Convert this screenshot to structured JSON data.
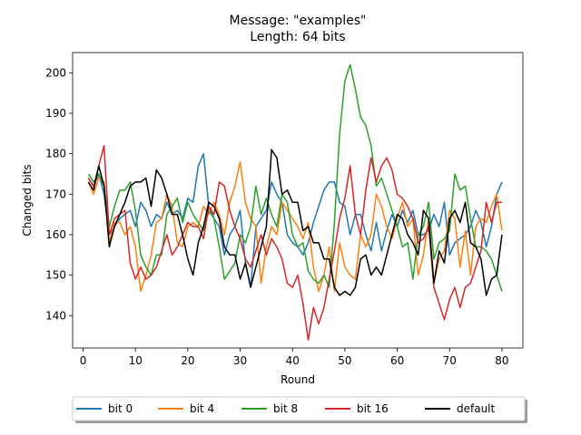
{
  "chart_data": {
    "type": "line",
    "title": [
      "Message: \"examples\"",
      "Length: 64 bits"
    ],
    "xlabel": "Round",
    "ylabel": "Changed bits",
    "xlim": [
      -2,
      84
    ],
    "ylim": [
      132,
      205
    ],
    "xticks": [
      0,
      10,
      20,
      30,
      40,
      50,
      60,
      70,
      80
    ],
    "yticks": [
      140,
      150,
      160,
      170,
      180,
      190,
      200
    ],
    "grid": false,
    "legend_position": "bottom-center, outside plot area",
    "series": [
      {
        "name": "bit 0",
        "color": "#1f77b4",
        "values": [
          174,
          172,
          175,
          170,
          160,
          162,
          164,
          165,
          166,
          162,
          168,
          166,
          162,
          165,
          164,
          168,
          165,
          166,
          164,
          169,
          168,
          177,
          180,
          167,
          164,
          162,
          155,
          160,
          162,
          166,
          153,
          147,
          162,
          164,
          166,
          173,
          170,
          168,
          160,
          158,
          157,
          155,
          158,
          163,
          167,
          171,
          173,
          173,
          168,
          167,
          160,
          165,
          165,
          160,
          156,
          163,
          156,
          161,
          165,
          162,
          166,
          163,
          166,
          160,
          160,
          161,
          165,
          162,
          168,
          155,
          158,
          159,
          160,
          162,
          166,
          163,
          157,
          162,
          170,
          173
        ]
      },
      {
        "name": "bit 4",
        "color": "#ff7f0e",
        "values": [
          173,
          170,
          174,
          173,
          158,
          163,
          163,
          160,
          162,
          157,
          146,
          150,
          155,
          163,
          164,
          170,
          167,
          158,
          157,
          162,
          163,
          162,
          167,
          165,
          168,
          165,
          160,
          168,
          172,
          178,
          168,
          164,
          162,
          148,
          157,
          162,
          160,
          168,
          166,
          164,
          162,
          159,
          163,
          152,
          146,
          150,
          157,
          146,
          158,
          152,
          150,
          149,
          160,
          157,
          160,
          170,
          167,
          162,
          159,
          164,
          168,
          162,
          164,
          150,
          155,
          164,
          148,
          154,
          156,
          166,
          164,
          152,
          161,
          150,
          162,
          164,
          163,
          167,
          170,
          161
        ]
      },
      {
        "name": "bit 8",
        "color": "#2ca02c",
        "values": [
          175,
          173,
          175,
          172,
          162,
          167,
          171,
          171,
          173,
          166,
          155,
          152,
          150,
          155,
          155,
          165,
          167,
          169,
          163,
          168,
          165,
          163,
          161,
          166,
          164,
          157,
          149,
          151,
          153,
          160,
          158,
          162,
          172,
          165,
          169,
          165,
          162,
          170,
          168,
          160,
          157,
          158,
          151,
          149,
          148,
          150,
          147,
          163,
          185,
          198,
          202,
          196,
          189,
          187,
          182,
          172,
          174,
          170,
          166,
          162,
          157,
          158,
          149,
          160,
          162,
          168,
          154,
          158,
          159,
          161,
          175,
          171,
          172,
          164,
          157,
          157,
          156,
          154,
          150,
          146
        ]
      },
      {
        "name": "bit 16",
        "color": "#d62728",
        "values": [
          174,
          172,
          177,
          182,
          160,
          164,
          165,
          166,
          153,
          149,
          152,
          149,
          150,
          152,
          156,
          160,
          155,
          157,
          160,
          163,
          162,
          162,
          159,
          167,
          165,
          173,
          172,
          166,
          162,
          159,
          154,
          152,
          156,
          160,
          155,
          159,
          157,
          154,
          148,
          147,
          150,
          143,
          134,
          142,
          138,
          142,
          149,
          156,
          164,
          169,
          177,
          165,
          160,
          171,
          179,
          173,
          177,
          179,
          176,
          170,
          169,
          167,
          164,
          158,
          159,
          162,
          147,
          143,
          139,
          144,
          147,
          142,
          147,
          148,
          152,
          156,
          168,
          163,
          168,
          168
        ]
      },
      {
        "name": "default",
        "color": "#000000",
        "values": [
          173,
          171,
          177,
          172,
          157,
          162,
          165,
          168,
          172,
          173,
          173,
          174,
          167,
          176,
          174,
          170,
          165,
          165,
          160,
          154,
          150,
          158,
          162,
          168,
          167,
          164,
          157,
          155,
          155,
          149,
          153,
          147,
          152,
          157,
          162,
          181,
          179,
          170,
          171,
          168,
          168,
          161,
          162,
          158,
          158,
          154,
          154,
          147,
          145,
          146,
          145,
          147,
          154,
          155,
          150,
          152,
          150,
          155,
          160,
          165,
          164,
          160,
          158,
          155,
          166,
          164,
          148,
          156,
          153,
          164,
          166,
          163,
          168,
          158,
          157,
          154,
          145,
          149,
          150,
          160
        ]
      }
    ]
  }
}
